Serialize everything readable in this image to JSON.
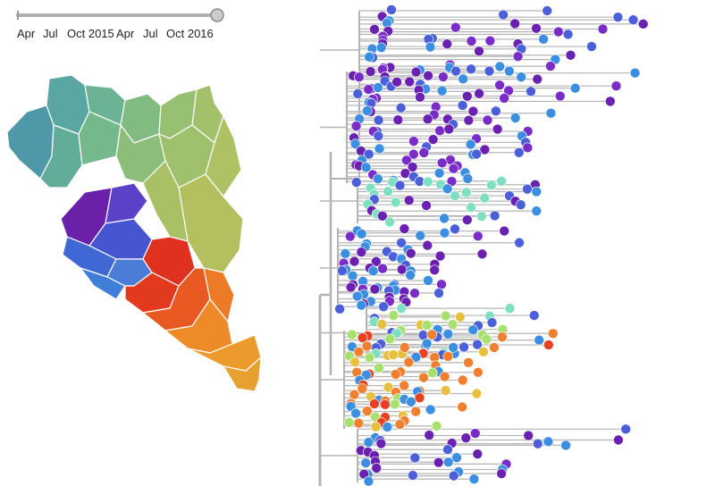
{
  "timeline": {
    "ticks": [
      {
        "label": "Apr"
      },
      {
        "label": "Jul"
      },
      {
        "label": "Oct 2015"
      },
      {
        "label": "Apr"
      },
      {
        "label": "Jul"
      },
      {
        "label": "Oct 2016"
      }
    ],
    "handle_position": 1.0,
    "track_color": "#b0b0b0",
    "handle_color": "#cccccc"
  },
  "map": {
    "region_colors": [
      "#4e98a8",
      "#5fae9c",
      "#76b98a",
      "#9ac070",
      "#b7c060",
      "#5b40c8",
      "#4070d8",
      "#6a20a8",
      "#e03020",
      "#e86020",
      "#ec8c28",
      "#e8a030"
    ]
  },
  "tree": {
    "branch_color": "#b4b4b4",
    "tip_palette": [
      "#6a20b0",
      "#7a2cc8",
      "#4a5fd8",
      "#3b8ee0",
      "#7ee0c0",
      "#a8e070",
      "#e8c040",
      "#f08030",
      "#e84020"
    ]
  }
}
